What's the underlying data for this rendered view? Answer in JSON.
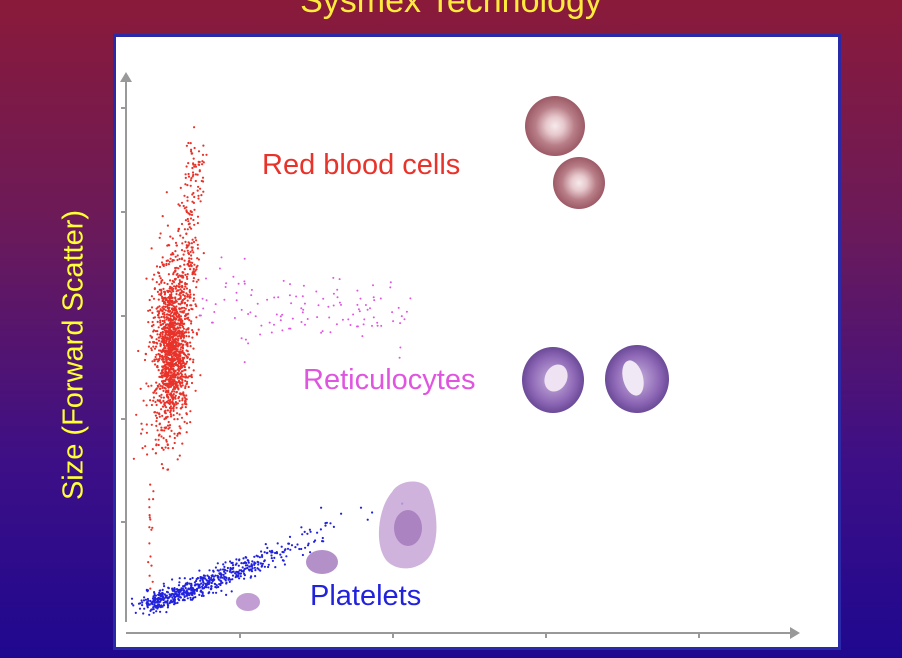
{
  "slide": {
    "title": "Sysmex Technology"
  },
  "chart_data": {
    "type": "scatter",
    "title": "",
    "ylabel": "Size (Forward Scatter)",
    "xlabel": "",
    "grid": false,
    "annotations": [
      {
        "text": "Red blood cells",
        "color": "#e8332a"
      },
      {
        "text": "Reticulocytes",
        "color": "#e055e0"
      },
      {
        "text": "Platelets",
        "color": "#2222dd"
      }
    ],
    "series": [
      {
        "name": "Red blood cells",
        "color": "#e8332a"
      },
      {
        "name": "Reticulocytes",
        "color": "#e055e0"
      },
      {
        "name": "Platelets",
        "color": "#2222dd"
      }
    ]
  }
}
